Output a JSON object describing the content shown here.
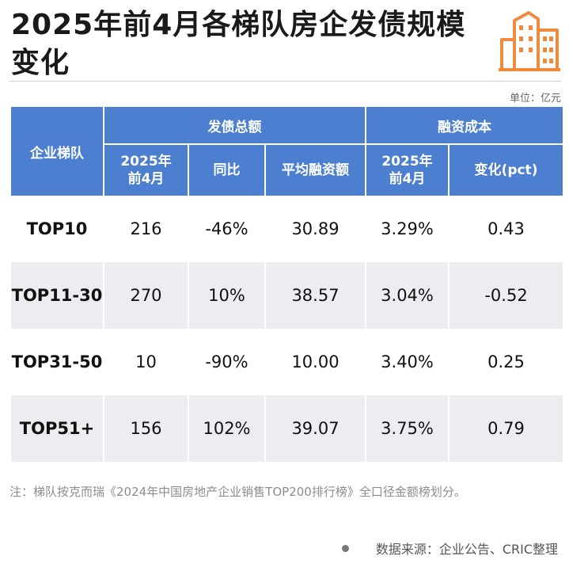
{
  "title": "2025年前4月各梯队房企发债规模变化",
  "unit": "单位：亿元",
  "table": {
    "header_left": "企业梯队",
    "group_issue": "发债总额",
    "group_cost": "融资成本",
    "sub": {
      "col1": "2025年\n前4月",
      "col2": "同比",
      "col3": "平均融资额",
      "col4": "2025年\n前4月",
      "col5": "变化(pct)"
    },
    "rows": [
      {
        "tier": "TOP10",
        "amount": "216",
        "yoy": "-46%",
        "avg": "30.89",
        "cost": "3.29%",
        "change": "0.43"
      },
      {
        "tier": "TOP11-30",
        "amount": "270",
        "yoy": "10%",
        "avg": "38.57",
        "cost": "3.04%",
        "change": "-0.52"
      },
      {
        "tier": "TOP31-50",
        "amount": "10",
        "yoy": "-90%",
        "avg": "10.00",
        "cost": "3.40%",
        "change": "0.25"
      },
      {
        "tier": "TOP51+",
        "amount": "156",
        "yoy": "102%",
        "avg": "39.07",
        "cost": "3.75%",
        "change": "0.79"
      }
    ]
  },
  "note": "注：梯队按克而瑞《2024年中国房地产企业销售TOP200排行榜》全口径金额榜划分。",
  "source": "数据来源：企业公告、CRIC整理",
  "colors": {
    "header": "#4d7fd0",
    "logo": "#f08a3c",
    "stripe": "#ececf1"
  },
  "icons": {
    "logo": "buildings-icon"
  }
}
